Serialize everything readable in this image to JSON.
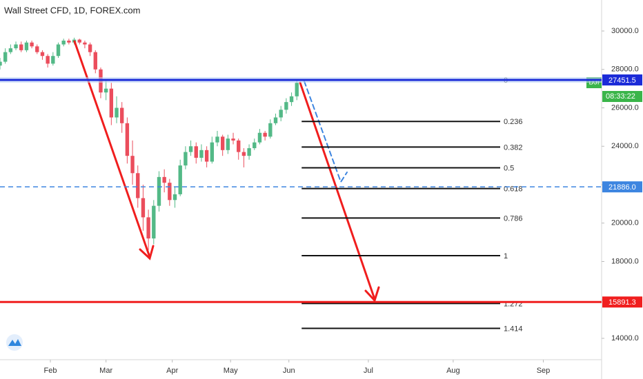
{
  "chart_data": {
    "type": "candlestick",
    "title": "Wall Street CFD, 1D, FOREX.com",
    "symbol_badge": "DJI",
    "countdown": "08:33:22",
    "up_color": "#53b987",
    "down_color": "#eb4d5c",
    "x": [
      0,
      2,
      4,
      6,
      8,
      10,
      12,
      14,
      16,
      18,
      20,
      22,
      24,
      26,
      28,
      30,
      32,
      34,
      36,
      38,
      40,
      42,
      44,
      46,
      48,
      50,
      52,
      54,
      56,
      58,
      60,
      62,
      64,
      66,
      68,
      70,
      72,
      74,
      76,
      78,
      80,
      82,
      84,
      86,
      88,
      90,
      92,
      94,
      96,
      98,
      100,
      102,
      104,
      106,
      108,
      110,
      112
    ],
    "open": [
      28200,
      28400,
      28900,
      29100,
      29300,
      29000,
      29400,
      29200,
      28900,
      28700,
      28300,
      28700,
      29300,
      29500,
      29400,
      29550,
      29400,
      29300,
      28900,
      28000,
      26800,
      27000,
      25500,
      26000,
      25200,
      23500,
      22600,
      21300,
      20300,
      19200,
      20900,
      22400,
      22100,
      21200,
      21500,
      23000,
      23700,
      24000,
      23400,
      23800,
      23200,
      24200,
      24500,
      23800,
      24400,
      24300,
      23700,
      23500,
      23900,
      24200,
      24700,
      24500,
      25200,
      25500,
      25900,
      26300,
      26600
    ],
    "high": [
      28600,
      29100,
      29300,
      29450,
      29450,
      29500,
      29500,
      29300,
      29000,
      28800,
      28900,
      29400,
      29600,
      29600,
      29650,
      29600,
      29500,
      29400,
      29000,
      28100,
      27400,
      27300,
      26600,
      26300,
      25500,
      24300,
      23000,
      22000,
      20700,
      21200,
      22700,
      22800,
      22300,
      21900,
      23300,
      24000,
      24300,
      24200,
      24100,
      24000,
      24500,
      24800,
      24600,
      24600,
      24700,
      24400,
      23900,
      24100,
      24400,
      24900,
      24800,
      25400,
      25700,
      26100,
      26500,
      26800,
      27500
    ],
    "low": [
      28000,
      28300,
      28800,
      29000,
      28900,
      28900,
      29100,
      28800,
      28500,
      28100,
      28200,
      28600,
      29200,
      29300,
      29300,
      29300,
      29100,
      28700,
      27800,
      26500,
      26400,
      25100,
      25200,
      24700,
      23100,
      22000,
      20800,
      19600,
      18600,
      18900,
      20600,
      21600,
      20900,
      20800,
      21400,
      22800,
      23500,
      23100,
      23200,
      22900,
      23100,
      24000,
      23500,
      23600,
      24100,
      23300,
      22900,
      23300,
      23800,
      24100,
      24300,
      24400,
      25100,
      25300,
      25700,
      26100,
      26400
    ],
    "close": [
      28400,
      28900,
      29100,
      29300,
      29000,
      29400,
      29200,
      28900,
      28700,
      28300,
      28700,
      29300,
      29500,
      29400,
      29550,
      29400,
      29300,
      28900,
      28000,
      26800,
      27000,
      25500,
      26000,
      25200,
      23500,
      22600,
      21300,
      20300,
      19200,
      20900,
      22400,
      22100,
      21200,
      21500,
      23000,
      23700,
      24000,
      23400,
      23800,
      23200,
      24200,
      24500,
      23800,
      24400,
      24300,
      23700,
      23500,
      23900,
      24200,
      24700,
      24500,
      25200,
      25500,
      25900,
      26300,
      26600,
      27300
    ],
    "xlim": [
      0,
      227
    ],
    "xticks": [
      {
        "value": 19,
        "label": "Feb"
      },
      {
        "value": 40,
        "label": "Mar"
      },
      {
        "value": 65,
        "label": "Apr"
      },
      {
        "value": 87,
        "label": "May"
      },
      {
        "value": 109,
        "label": "Jun"
      },
      {
        "value": 139,
        "label": "Jul"
      },
      {
        "value": 171,
        "label": "Aug"
      },
      {
        "value": 205,
        "label": "Sep"
      }
    ],
    "ylim": [
      12888,
      31614
    ],
    "yticks": [
      {
        "value": 14000,
        "label": "14000.0"
      },
      {
        "value": 16000,
        "label": "16000.0"
      },
      {
        "value": 18000,
        "label": "18000.0"
      },
      {
        "value": 20000,
        "label": "20000.0"
      },
      {
        "value": 22000,
        "label": "22000.0"
      },
      {
        "value": 24000,
        "label": "24000.0"
      },
      {
        "value": 26000,
        "label": "26000.0"
      },
      {
        "value": 28000,
        "label": "28000.0"
      },
      {
        "value": 30000,
        "label": "30000.0"
      }
    ],
    "price_lines": [
      {
        "value": 27451.5,
        "color": "#1b2bd8",
        "dashed": false
      },
      {
        "value": 21886,
        "label": "21886.0",
        "color": "#3d85e0",
        "dashed": true
      },
      {
        "value": 15891.3,
        "color": "#f01e1e",
        "dashed": false
      }
    ],
    "fib": {
      "start": 27451.5,
      "end": 18305,
      "levels": [
        0,
        0.236,
        0.382,
        0.5,
        0.618,
        0.786,
        1,
        1.272,
        1.414
      ]
    }
  }
}
